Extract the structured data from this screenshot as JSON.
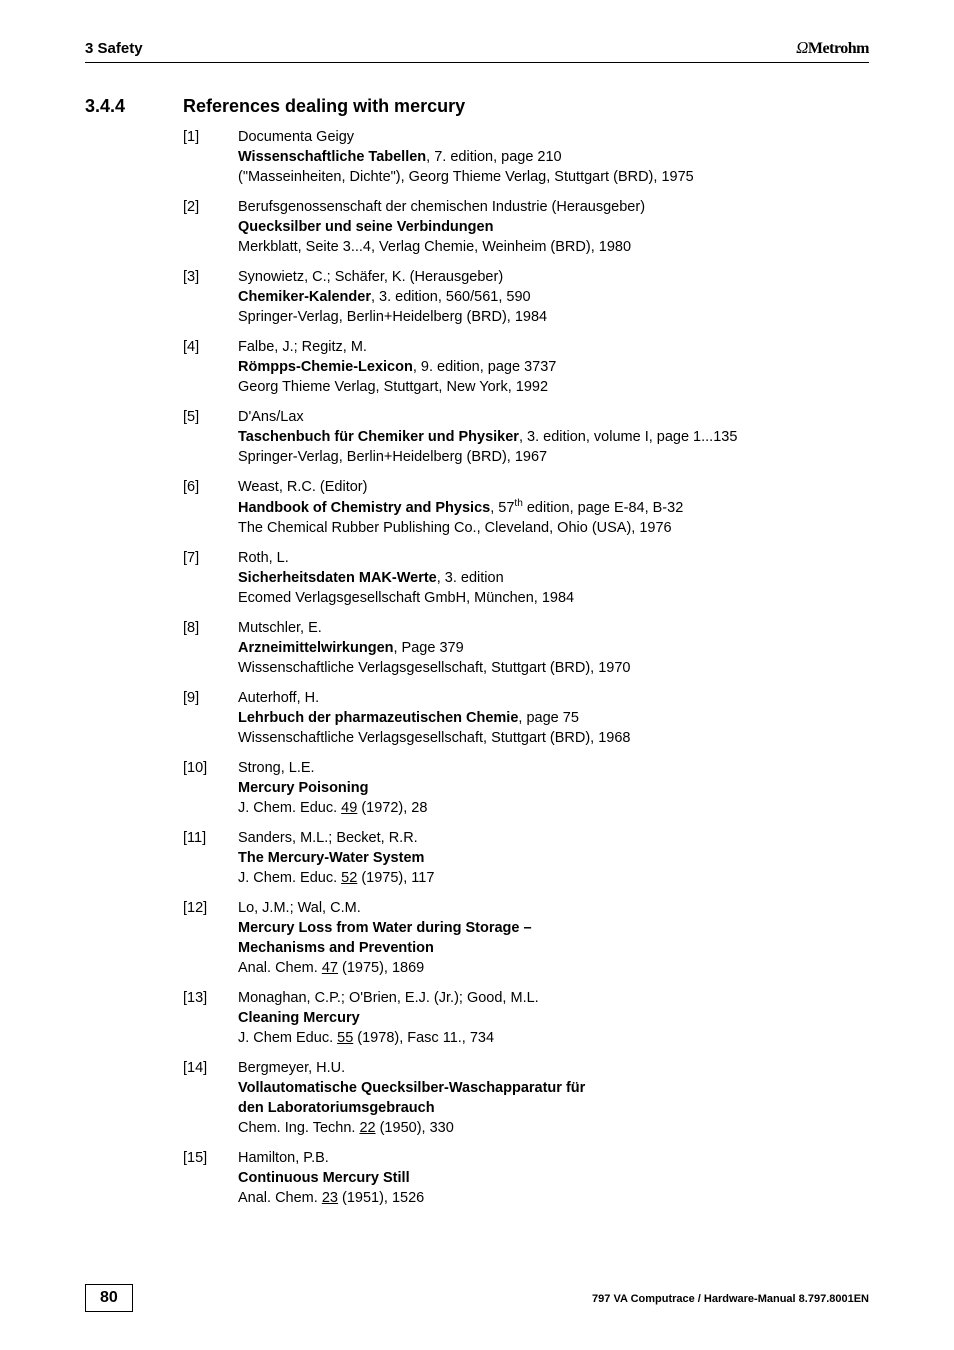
{
  "header": {
    "left": "3 Safety",
    "brand_symbol": "Ω",
    "brand_name": "Metrohm"
  },
  "section": {
    "number": "3.4.4",
    "title": "References dealing with mercury"
  },
  "refs": [
    {
      "k": "[1]",
      "p1": "Documenta Geigy",
      "b": "Wissenschaftliche Tabellen",
      "p2": ", 7. edition, page 210",
      "p3": "(\"Masseinheiten, Dichte\"), Georg Thieme Verlag, Stuttgart (BRD), 1975"
    },
    {
      "k": "[2]",
      "p1": "Berufsgenossenschaft der chemischen Industrie (Herausgeber)",
      "b": "Quecksilber und seine Verbindungen",
      "p2": "",
      "p3": "Merkblatt, Seite 3...4, Verlag Chemie, Weinheim (BRD), 1980"
    },
    {
      "k": "[3]",
      "p1": "Synowietz, C.; Schäfer, K. (Herausgeber)",
      "b": "Chemiker-Kalender",
      "p2": ", 3. edition, 560/561, 590",
      "p3": "Springer-Verlag, Berlin+Heidelberg (BRD), 1984"
    },
    {
      "k": "[4]",
      "p1": "Falbe, J.; Regitz, M.",
      "b": "Römpps-Chemie-Lexicon",
      "p2": ", 9. edition, page  3737",
      "p3": "Georg Thieme Verlag, Stuttgart, New York, 1992"
    },
    {
      "k": "[5]",
      "p1": "D'Ans/Lax",
      "b": "Taschenbuch für Chemiker und Physiker",
      "p2": ", 3. edition, volume I, page 1...135",
      "p3": "Springer-Verlag, Berlin+Heidelberg (BRD), 1967"
    },
    {
      "k": "[6]",
      "p1": "Weast, R.C. (Editor)",
      "b": "Handbook of Chemistry and Physics",
      "p2_pre": ", 57",
      "p2_sup": "th",
      "p2_post": " edition, page E-84, B-32",
      "p3": "The Chemical Rubber Publishing Co., Cleveland, Ohio (USA), 1976"
    },
    {
      "k": "[7]",
      "p1": "Roth, L.",
      "b": "Sicherheitsdaten MAK-Werte",
      "p2": ", 3. edition",
      "p3": "Ecomed Verlagsgesellschaft GmbH, München, 1984"
    },
    {
      "k": "[8]",
      "p1": "Mutschler, E.",
      "b": "Arzneimittelwirkungen",
      "p2": ", Page  379",
      "p3": "Wissenschaftliche Verlagsgesellschaft, Stuttgart (BRD), 1970"
    },
    {
      "k": "[9]",
      "p1": "Auterhoff, H.",
      "b": "Lehrbuch der pharmazeutischen Chemie",
      "p2": ", page  75",
      "p3": "Wissenschaftliche Verlagsgesellschaft, Stuttgart (BRD), 1968"
    },
    {
      "k": "[10]",
      "p1": "Strong, L.E.",
      "b": "Mercury Poisoning",
      "p2": "",
      "j_pre": "J. Chem. Educ. ",
      "j_u": "49",
      "j_post": " (1972), 28"
    },
    {
      "k": "[11]",
      "p1": "Sanders, M.L.; Becket, R.R.",
      "b": "The Mercury-Water System",
      "p2": "",
      "j_pre": "J. Chem. Educ. ",
      "j_u": "52",
      "j_post": " (1975), 117"
    },
    {
      "k": "[12]",
      "p1": "Lo, J.M.; Wal, C.M.",
      "b": "Mercury Loss from Water during Storage –",
      "b2": "Mechanisms and Prevention",
      "j_pre": "Anal. Chem. ",
      "j_u": "47",
      "j_post": " (1975), 1869"
    },
    {
      "k": "[13]",
      "p1": "Monaghan, C.P.; O'Brien, E.J. (Jr.); Good, M.L.",
      "b": "Cleaning Mercury",
      "p2": "",
      "j_pre": "J. Chem Educ. ",
      "j_u": "55",
      "j_post": " (1978), Fasc 11., 734"
    },
    {
      "k": "[14]",
      "p1": "Bergmeyer, H.U.",
      "b": "Vollautomatische Quecksilber-Waschapparatur für",
      "b2": "den Laboratoriumsgebrauch",
      "j_pre": "Chem. Ing. Techn. ",
      "j_u": "22",
      "j_post": " (1950), 330"
    },
    {
      "k": "[15]",
      "p1": "Hamilton, P.B.",
      "b": "Continuous Mercury Still",
      "p2": "",
      "j_pre": "Anal. Chem. ",
      "j_u": "23",
      "j_post": " (1951), 1526"
    }
  ],
  "footer": {
    "page": "80",
    "right": "797 VA Computrace / Hardware-Manual  8.797.8001EN"
  }
}
